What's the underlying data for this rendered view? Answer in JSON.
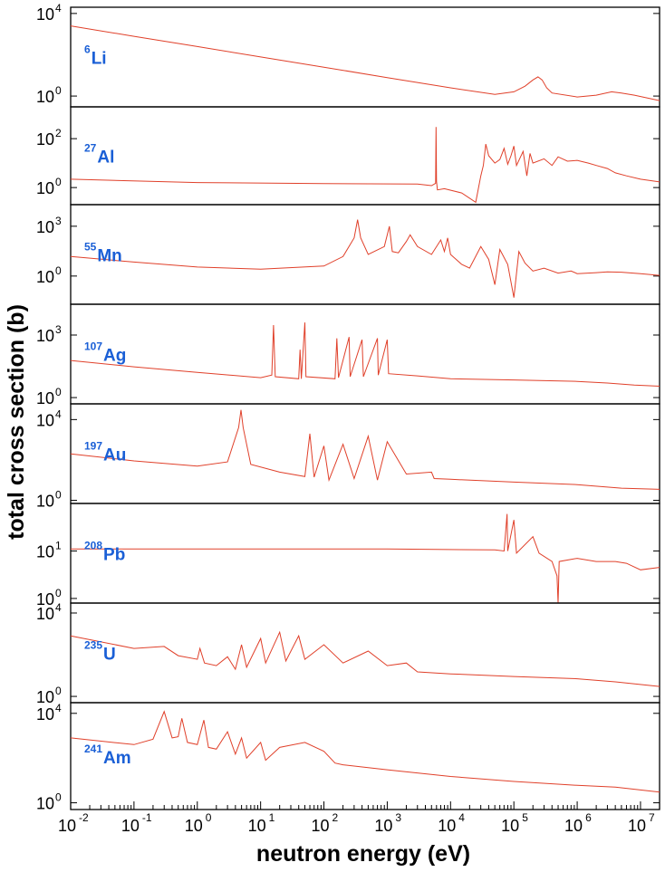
{
  "chart_data": {
    "type": "line",
    "xlabel": "neutron energy (eV)",
    "ylabel": "total cross section (b)",
    "x_scale": "log",
    "y_scale": "log",
    "xlim": [
      0.01,
      20000000
    ],
    "x_ticks": [
      {
        "base": "10",
        "exp": "-2"
      },
      {
        "base": "10",
        "exp": "-1"
      },
      {
        "base": "10",
        "exp": "0"
      },
      {
        "base": "10",
        "exp": "1"
      },
      {
        "base": "10",
        "exp": "2"
      },
      {
        "base": "10",
        "exp": "3"
      },
      {
        "base": "10",
        "exp": "4"
      },
      {
        "base": "10",
        "exp": "5"
      },
      {
        "base": "10",
        "exp": "6"
      },
      {
        "base": "10",
        "exp": "7"
      }
    ],
    "line_color": "#e0402a",
    "label_color": "#1a5fd6",
    "panels": [
      {
        "isotope": "Li",
        "mass": "6",
        "ylim": [
          0.3,
          20000
        ],
        "y_ticks": [
          {
            "value": 10000,
            "base": "10",
            "exp": "4"
          },
          {
            "value": 1,
            "base": "10",
            "exp": "0"
          }
        ],
        "points": [
          [
            0.01,
            2500
          ],
          [
            0.1,
            780
          ],
          [
            1,
            250
          ],
          [
            10,
            78
          ],
          [
            100,
            25
          ],
          [
            1000,
            7.8
          ],
          [
            10000,
            2.5
          ],
          [
            50000,
            1.2
          ],
          [
            100000,
            1.6
          ],
          [
            150000,
            3
          ],
          [
            200000,
            6
          ],
          [
            240000,
            8.5
          ],
          [
            280000,
            6
          ],
          [
            330000,
            2.5
          ],
          [
            400000,
            1.4
          ],
          [
            1000000,
            0.9
          ],
          [
            2000000,
            1.1
          ],
          [
            3500000,
            1.6
          ],
          [
            5000000,
            1.4
          ],
          [
            8000000,
            1.1
          ],
          [
            20000000,
            0.6
          ]
        ]
      },
      {
        "isotope": "Al",
        "mass": "27",
        "ylim": [
          0.2,
          2000
        ],
        "y_ticks": [
          {
            "value": 100,
            "base": "10",
            "exp": "2"
          },
          {
            "value": 1,
            "base": "10",
            "exp": "0"
          }
        ],
        "points": [
          [
            0.01,
            2.2
          ],
          [
            1,
            1.6
          ],
          [
            100,
            1.45
          ],
          [
            3000,
            1.4
          ],
          [
            5000,
            1.2
          ],
          [
            5800,
            1.5
          ],
          [
            5900,
            300
          ],
          [
            6000,
            1.8
          ],
          [
            6200,
            0.8
          ],
          [
            8000,
            0.9
          ],
          [
            15000,
            0.6
          ],
          [
            25000,
            0.25
          ],
          [
            30000,
            3
          ],
          [
            33000,
            8
          ],
          [
            36000,
            60
          ],
          [
            40000,
            20
          ],
          [
            50000,
            10
          ],
          [
            60000,
            14
          ],
          [
            70000,
            40
          ],
          [
            80000,
            9
          ],
          [
            90000,
            20
          ],
          [
            100000,
            50
          ],
          [
            110000,
            8
          ],
          [
            140000,
            30
          ],
          [
            160000,
            3
          ],
          [
            180000,
            25
          ],
          [
            200000,
            10
          ],
          [
            300000,
            15
          ],
          [
            400000,
            8
          ],
          [
            500000,
            18
          ],
          [
            700000,
            12
          ],
          [
            1000000,
            13
          ],
          [
            1500000,
            10
          ],
          [
            2000000,
            8
          ],
          [
            3000000,
            6
          ],
          [
            4000000,
            4
          ],
          [
            6000000,
            3
          ],
          [
            10000000,
            2.2
          ],
          [
            20000000,
            1.7
          ]
        ]
      },
      {
        "isotope": "Mn",
        "mass": "55",
        "ylim": [
          0.02,
          20000
        ],
        "y_ticks": [
          {
            "value": 1000,
            "base": "10",
            "exp": "3"
          },
          {
            "value": 1,
            "base": "10",
            "exp": "0"
          }
        ],
        "points": [
          [
            0.01,
            15
          ],
          [
            0.1,
            7
          ],
          [
            1,
            3.5
          ],
          [
            10,
            2.6
          ],
          [
            100,
            4
          ],
          [
            200,
            15
          ],
          [
            300,
            200
          ],
          [
            340,
            2500
          ],
          [
            380,
            200
          ],
          [
            500,
            20
          ],
          [
            900,
            60
          ],
          [
            1080,
            1000
          ],
          [
            1200,
            30
          ],
          [
            1500,
            25
          ],
          [
            2000,
            120
          ],
          [
            2300,
            300
          ],
          [
            3000,
            60
          ],
          [
            5000,
            20
          ],
          [
            7000,
            150
          ],
          [
            8000,
            30
          ],
          [
            9000,
            200
          ],
          [
            10000,
            20
          ],
          [
            15000,
            5
          ],
          [
            20000,
            3
          ],
          [
            30000,
            60
          ],
          [
            40000,
            10
          ],
          [
            50000,
            0.3
          ],
          [
            60000,
            40
          ],
          [
            80000,
            5
          ],
          [
            100000,
            0.05
          ],
          [
            120000,
            30
          ],
          [
            150000,
            6
          ],
          [
            200000,
            2
          ],
          [
            300000,
            3
          ],
          [
            500000,
            1.5
          ],
          [
            800000,
            2
          ],
          [
            1000000,
            1.4
          ],
          [
            2000000,
            1.6
          ],
          [
            3000000,
            1.8
          ],
          [
            5000000,
            1.7
          ],
          [
            10000000,
            1.4
          ],
          [
            20000000,
            1.1
          ]
        ]
      },
      {
        "isotope": "Ag",
        "mass": "107",
        "ylim": [
          0.5,
          30000
        ],
        "y_ticks": [
          {
            "value": 1000,
            "base": "10",
            "exp": "3"
          },
          {
            "value": 1,
            "base": "10",
            "exp": "0"
          }
        ],
        "points": [
          [
            0.01,
            60
          ],
          [
            0.1,
            30
          ],
          [
            1,
            16
          ],
          [
            10,
            9
          ],
          [
            15,
            12
          ],
          [
            16,
            3000
          ],
          [
            17,
            10
          ],
          [
            40,
            8
          ],
          [
            42,
            200
          ],
          [
            44,
            8
          ],
          [
            50,
            4000
          ],
          [
            52,
            10
          ],
          [
            150,
            8
          ],
          [
            160,
            700
          ],
          [
            170,
            9
          ],
          [
            250,
            800
          ],
          [
            260,
            10
          ],
          [
            400,
            600
          ],
          [
            420,
            10
          ],
          [
            700,
            700
          ],
          [
            720,
            12
          ],
          [
            1000,
            600
          ],
          [
            1050,
            14
          ],
          [
            3000,
            11
          ],
          [
            10000,
            8
          ],
          [
            100000,
            7
          ],
          [
            1000000,
            6
          ],
          [
            3000000,
            5
          ],
          [
            8000000,
            4
          ],
          [
            20000000,
            3.5
          ]
        ]
      },
      {
        "isotope": "Au",
        "mass": "197",
        "ylim": [
          0.7,
          60000
        ],
        "y_ticks": [
          {
            "value": 10000,
            "base": "10",
            "exp": "4"
          },
          {
            "value": 1,
            "base": "10",
            "exp": "0"
          }
        ],
        "points": [
          [
            0.01,
            200
          ],
          [
            0.1,
            90
          ],
          [
            1,
            50
          ],
          [
            3,
            80
          ],
          [
            4.5,
            4000
          ],
          [
            4.9,
            30000
          ],
          [
            5.3,
            4000
          ],
          [
            7,
            60
          ],
          [
            20,
            25
          ],
          [
            50,
            15
          ],
          [
            60,
            2000
          ],
          [
            70,
            14
          ],
          [
            100,
            500
          ],
          [
            120,
            10
          ],
          [
            200,
            600
          ],
          [
            300,
            12
          ],
          [
            500,
            1500
          ],
          [
            700,
            10
          ],
          [
            1000,
            800
          ],
          [
            2000,
            20
          ],
          [
            5000,
            25
          ],
          [
            5500,
            12
          ],
          [
            10000,
            11
          ],
          [
            100000,
            8
          ],
          [
            1000000,
            6
          ],
          [
            5000000,
            4
          ],
          [
            20000000,
            3.5
          ]
        ]
      },
      {
        "isotope": "Pb",
        "mass": "208",
        "ylim": [
          0.8,
          100
        ],
        "y_ticks": [
          {
            "value": 10,
            "base": "10",
            "exp": "1"
          },
          {
            "value": 1,
            "base": "10",
            "exp": "0"
          }
        ],
        "points": [
          [
            0.01,
            11
          ],
          [
            1000,
            11
          ],
          [
            50000,
            10.5
          ],
          [
            70000,
            10
          ],
          [
            78000,
            60
          ],
          [
            80000,
            10
          ],
          [
            100000,
            45
          ],
          [
            110000,
            9
          ],
          [
            200000,
            20
          ],
          [
            250000,
            9
          ],
          [
            400000,
            6
          ],
          [
            480000,
            3
          ],
          [
            500000,
            0.8
          ],
          [
            520000,
            6
          ],
          [
            1000000,
            7
          ],
          [
            2000000,
            6
          ],
          [
            4000000,
            6
          ],
          [
            6000000,
            5.5
          ],
          [
            10000000,
            4
          ],
          [
            20000000,
            4.5
          ]
        ]
      },
      {
        "isotope": "U",
        "mass": "235",
        "ylim": [
          0.5,
          30000
        ],
        "y_ticks": [
          {
            "value": 10000,
            "base": "10",
            "exp": "4"
          },
          {
            "value": 1,
            "base": "10",
            "exp": "0"
          }
        ],
        "points": [
          [
            0.01,
            800
          ],
          [
            0.1,
            200
          ],
          [
            0.3,
            250
          ],
          [
            0.5,
            90
          ],
          [
            1,
            60
          ],
          [
            1.1,
            200
          ],
          [
            1.3,
            40
          ],
          [
            2,
            30
          ],
          [
            3,
            80
          ],
          [
            4,
            20
          ],
          [
            5,
            300
          ],
          [
            6,
            25
          ],
          [
            10,
            600
          ],
          [
            12,
            40
          ],
          [
            20,
            1200
          ],
          [
            25,
            50
          ],
          [
            40,
            800
          ],
          [
            50,
            60
          ],
          [
            100,
            300
          ],
          [
            200,
            40
          ],
          [
            500,
            150
          ],
          [
            1000,
            30
          ],
          [
            2000,
            40
          ],
          [
            3000,
            15
          ],
          [
            10000,
            12
          ],
          [
            100000,
            9
          ],
          [
            1000000,
            7
          ],
          [
            4000000,
            5
          ],
          [
            20000000,
            3
          ]
        ]
      },
      {
        "isotope": "Am",
        "mass": "241",
        "ylim": [
          0.5,
          30000
        ],
        "y_ticks": [
          {
            "value": 10000,
            "base": "10",
            "exp": "4"
          },
          {
            "value": 1,
            "base": "10",
            "exp": "0"
          }
        ],
        "points": [
          [
            0.01,
            800
          ],
          [
            0.1,
            400
          ],
          [
            0.2,
            700
          ],
          [
            0.3,
            12000
          ],
          [
            0.4,
            800
          ],
          [
            0.5,
            900
          ],
          [
            0.57,
            6000
          ],
          [
            0.7,
            500
          ],
          [
            1,
            400
          ],
          [
            1.27,
            5000
          ],
          [
            1.5,
            300
          ],
          [
            2,
            250
          ],
          [
            3,
            1500
          ],
          [
            4,
            150
          ],
          [
            5,
            800
          ],
          [
            6,
            100
          ],
          [
            10,
            500
          ],
          [
            12,
            80
          ],
          [
            20,
            300
          ],
          [
            50,
            500
          ],
          [
            100,
            200
          ],
          [
            150,
            60
          ],
          [
            200,
            50
          ],
          [
            1000,
            30
          ],
          [
            10000,
            15
          ],
          [
            100000,
            9
          ],
          [
            1000000,
            6
          ],
          [
            4000000,
            5
          ],
          [
            20000000,
            3
          ]
        ]
      }
    ]
  }
}
